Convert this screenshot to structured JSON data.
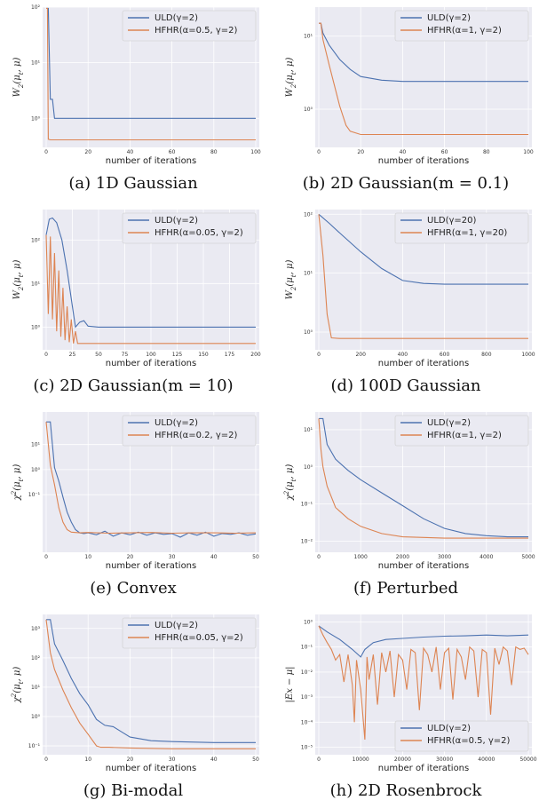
{
  "chart_data": [
    {
      "type": "line",
      "caption": "(a) 1D Gaussian",
      "xlabel": "number of iterations",
      "ylabel": "W_2(μ_t, μ)",
      "xlim": [
        0,
        100
      ],
      "ylim": [
        0.3,
        100
      ],
      "yscale": "log",
      "xticks": [
        0,
        20,
        40,
        60,
        80,
        100
      ],
      "ytick_labels": [
        "10²",
        "10¹",
        "10⁰"
      ],
      "ytick_values": [
        100,
        10,
        1
      ],
      "legend_position": "top-right",
      "series": [
        {
          "name": "ULD(γ=2)",
          "color": "#4c72b0",
          "x": [
            0,
            1,
            2,
            3,
            4,
            10,
            50,
            100
          ],
          "y": [
            95,
            95,
            2.2,
            2.2,
            1.0,
            1.0,
            1.0,
            1.0
          ]
        },
        {
          "name": "HFHR(α=0.5, γ=2)",
          "color": "#dd8452",
          "x": [
            0,
            0.6,
            1,
            2,
            3,
            10,
            50,
            100
          ],
          "y": [
            95,
            95,
            0.42,
            0.41,
            0.41,
            0.41,
            0.41,
            0.41
          ]
        }
      ]
    },
    {
      "type": "line",
      "caption": "(b) 2D Gaussian(m = 0.1)",
      "xlabel": "number of iterations",
      "ylabel": "W_2(μ_t, μ)",
      "xlim": [
        0,
        100
      ],
      "ylim": [
        0.3,
        25
      ],
      "yscale": "log",
      "xticks": [
        0,
        20,
        40,
        60,
        80,
        100
      ],
      "ytick_labels": [
        "10¹",
        "10⁰"
      ],
      "ytick_values": [
        10,
        1
      ],
      "legend_position": "top-right",
      "series": [
        {
          "name": "ULD(γ=2)",
          "color": "#4c72b0",
          "x": [
            0,
            1,
            2,
            5,
            10,
            15,
            20,
            30,
            40,
            60,
            80,
            100
          ],
          "y": [
            15,
            15,
            11,
            7.5,
            4.8,
            3.5,
            2.8,
            2.5,
            2.4,
            2.4,
            2.4,
            2.4
          ]
        },
        {
          "name": "HFHR(α=1, γ=2)",
          "color": "#dd8452",
          "x": [
            0,
            1,
            2,
            5,
            10,
            13,
            15,
            20,
            30,
            60,
            100
          ],
          "y": [
            15,
            15,
            9,
            4,
            1.1,
            0.6,
            0.5,
            0.45,
            0.45,
            0.45,
            0.45
          ]
        }
      ]
    },
    {
      "type": "line",
      "caption": "(c) 2D Gaussian(m = 10)",
      "xlabel": "number of iterations",
      "ylabel": "W_2(μ_t, μ)",
      "xlim": [
        0,
        200
      ],
      "ylim": [
        0.3,
        500
      ],
      "yscale": "log",
      "xticks": [
        0,
        25,
        50,
        75,
        100,
        125,
        150,
        175,
        200
      ],
      "ytick_labels": [
        "10²",
        "10¹",
        "10⁰"
      ],
      "ytick_values": [
        100,
        10,
        1
      ],
      "legend_position": "top-right",
      "series": [
        {
          "name": "ULD(γ=2)",
          "color": "#4c72b0",
          "x": [
            0,
            3,
            6,
            10,
            15,
            20,
            25,
            28,
            32,
            36,
            40,
            50,
            100,
            200
          ],
          "y": [
            130,
            300,
            320,
            250,
            100,
            20,
            3,
            1.0,
            1.3,
            1.4,
            1.05,
            1.0,
            1.0,
            1.0
          ]
        },
        {
          "name": "HFHR(α=0.05, γ=2)",
          "color": "#dd8452",
          "x": [
            0,
            2,
            4,
            6,
            8,
            10,
            12,
            14,
            16,
            18,
            20,
            22,
            24,
            26,
            28,
            30,
            40,
            100,
            200
          ],
          "y": [
            130,
            2.0,
            120,
            1.5,
            50,
            0.8,
            20,
            0.6,
            8,
            0.5,
            3,
            0.45,
            1.5,
            0.42,
            0.8,
            0.42,
            0.42,
            0.42,
            0.42
          ]
        }
      ]
    },
    {
      "type": "line",
      "caption": "(d) 100D Gaussian",
      "xlabel": "number of iterations",
      "ylabel": "W_2(μ_t, μ)",
      "xlim": [
        0,
        1000
      ],
      "ylim": [
        0.5,
        120
      ],
      "yscale": "log",
      "xticks": [
        0,
        200,
        400,
        600,
        800,
        1000
      ],
      "ytick_labels": [
        "10²",
        "10¹",
        "10⁰"
      ],
      "ytick_values": [
        100,
        10,
        1
      ],
      "legend_position": "top-right",
      "series": [
        {
          "name": "ULD(γ=20)",
          "color": "#4c72b0",
          "x": [
            0,
            50,
            100,
            200,
            300,
            400,
            500,
            600,
            800,
            1000
          ],
          "y": [
            100,
            70,
            48,
            23,
            12,
            7.5,
            6.7,
            6.5,
            6.5,
            6.5
          ]
        },
        {
          "name": "HFHR(α=1, γ=20)",
          "color": "#dd8452",
          "x": [
            0,
            20,
            40,
            60,
            100,
            500,
            1000
          ],
          "y": [
            100,
            20,
            2,
            0.8,
            0.78,
            0.78,
            0.78
          ]
        }
      ]
    },
    {
      "type": "line",
      "caption": "(e) Convex",
      "xlabel": "number of iterations",
      "ylabel": "χ²(μ_t, μ)",
      "xlim": [
        0,
        50
      ],
      "ylim": [
        0.0005,
        200
      ],
      "yscale": "log",
      "xticks": [
        0,
        10,
        20,
        30,
        40,
        50
      ],
      "ytick_labels": [
        "10¹",
        "10⁰",
        "10⁻¹"
      ],
      "ytick_values": [
        10,
        1,
        0.1
      ],
      "legend_position": "top-right",
      "series": [
        {
          "name": "ULD(γ=2)",
          "color": "#4c72b0",
          "x": [
            0,
            1,
            2,
            3,
            4,
            5,
            6,
            7,
            8,
            9,
            10,
            12,
            14,
            16,
            18,
            20,
            22,
            24,
            26,
            28,
            30,
            32,
            34,
            36,
            38,
            40,
            42,
            44,
            46,
            48,
            50
          ],
          "y": [
            80,
            80,
            1.2,
            0.35,
            0.08,
            0.02,
            0.008,
            0.004,
            0.003,
            0.0028,
            0.003,
            0.0025,
            0.0035,
            0.0022,
            0.003,
            0.0025,
            0.0032,
            0.0024,
            0.003,
            0.0026,
            0.0028,
            0.002,
            0.003,
            0.0024,
            0.0032,
            0.0022,
            0.0028,
            0.0026,
            0.003,
            0.0024,
            0.0027
          ]
        },
        {
          "name": "HFHR(α=0.2, γ=2)",
          "color": "#dd8452",
          "x": [
            0,
            1,
            2,
            3,
            4,
            5,
            6,
            8,
            10,
            15,
            20,
            25,
            30,
            35,
            40,
            45,
            50
          ],
          "y": [
            80,
            1.5,
            0.25,
            0.03,
            0.008,
            0.004,
            0.0032,
            0.003,
            0.0031,
            0.0029,
            0.003,
            0.0031,
            0.0029,
            0.003,
            0.003,
            0.0029,
            0.003
          ]
        }
      ]
    },
    {
      "type": "line",
      "caption": "(f) Perturbed",
      "xlabel": "number of iterations",
      "ylabel": "χ²(μ_t, μ)",
      "xlim": [
        0,
        5000
      ],
      "ylim": [
        0.005,
        30
      ],
      "yscale": "log",
      "xticks": [
        0,
        1000,
        2000,
        3000,
        4000,
        5000
      ],
      "ytick_labels": [
        "10¹",
        "10⁰",
        "10⁻¹",
        "10⁻²"
      ],
      "ytick_values": [
        10,
        1,
        0.1,
        0.01
      ],
      "legend_position": "top-right",
      "series": [
        {
          "name": "ULD(γ=2)",
          "color": "#4c72b0",
          "x": [
            0,
            100,
            200,
            400,
            700,
            1000,
            1500,
            2000,
            2500,
            3000,
            3500,
            4000,
            4500,
            5000
          ],
          "y": [
            20,
            20,
            4,
            1.6,
            0.8,
            0.45,
            0.2,
            0.09,
            0.04,
            0.022,
            0.016,
            0.014,
            0.013,
            0.013
          ]
        },
        {
          "name": "HFHR(α=1, γ=2)",
          "color": "#dd8452",
          "x": [
            0,
            50,
            100,
            200,
            400,
            700,
            1000,
            1500,
            2000,
            3000,
            4000,
            5000
          ],
          "y": [
            20,
            3,
            1.0,
            0.3,
            0.08,
            0.04,
            0.025,
            0.016,
            0.013,
            0.012,
            0.012,
            0.012
          ]
        }
      ]
    },
    {
      "type": "line",
      "caption": "(g) Bi-modal",
      "xlabel": "number of iterations",
      "ylabel": "χ²(μ_t, μ)",
      "xlim": [
        0,
        50
      ],
      "ylim": [
        0.05,
        3000
      ],
      "yscale": "log",
      "xticks": [
        0,
        10,
        20,
        30,
        40,
        50
      ],
      "ytick_labels": [
        "10³",
        "10²",
        "10¹",
        "10⁰",
        "10⁻¹"
      ],
      "ytick_values": [
        1000,
        100,
        10,
        1,
        0.1
      ],
      "legend_position": "top-right",
      "series": [
        {
          "name": "ULD(γ=2)",
          "color": "#4c72b0",
          "x": [
            0,
            1,
            2,
            4,
            6,
            8,
            10,
            12,
            14,
            16,
            18,
            20,
            25,
            30,
            40,
            50
          ],
          "y": [
            2000,
            2000,
            300,
            80,
            20,
            6,
            2.5,
            0.8,
            0.5,
            0.45,
            0.3,
            0.2,
            0.15,
            0.14,
            0.13,
            0.13
          ]
        },
        {
          "name": "HFHR(α=0.05, γ=2)",
          "color": "#dd8452",
          "x": [
            0,
            1,
            2,
            4,
            6,
            8,
            10,
            12,
            13,
            15,
            20,
            30,
            40,
            50
          ],
          "y": [
            2000,
            150,
            40,
            8,
            2,
            0.6,
            0.25,
            0.1,
            0.09,
            0.09,
            0.085,
            0.08,
            0.08,
            0.08
          ]
        }
      ]
    },
    {
      "type": "line",
      "caption": "(h) 2D Rosenbrock",
      "xlabel": "number of iterations",
      "ylabel": "|Ex − μ|",
      "xlim": [
        0,
        50000
      ],
      "ylim": [
        5e-06,
        2
      ],
      "yscale": "log",
      "xticks": [
        0,
        10000,
        20000,
        30000,
        40000,
        50000
      ],
      "ytick_labels": [
        "10⁰",
        "10⁻¹",
        "10⁻²",
        "10⁻³",
        "10⁻⁴",
        "10⁻⁵"
      ],
      "ytick_values": [
        1,
        0.1,
        0.01,
        0.001,
        0.0001,
        1e-05
      ],
      "legend_position": "bottom-right",
      "series": [
        {
          "name": "ULD(γ=2)",
          "color": "#4c72b0",
          "x": [
            0,
            2000,
            5000,
            8000,
            10000,
            11000,
            13000,
            16000,
            20000,
            25000,
            30000,
            35000,
            40000,
            45000,
            50000
          ],
          "y": [
            0.7,
            0.4,
            0.2,
            0.08,
            0.04,
            0.08,
            0.15,
            0.2,
            0.22,
            0.25,
            0.27,
            0.28,
            0.3,
            0.28,
            0.3
          ]
        },
        {
          "name": "HFHR(α=0.5, γ=2)",
          "color": "#dd8452",
          "x": [
            0,
            1000,
            2000,
            3000,
            4000,
            5000,
            6000,
            7000,
            8000,
            8500,
            9000,
            10000,
            11000,
            11500,
            12000,
            13000,
            14000,
            15000,
            16000,
            17000,
            18000,
            19000,
            20000,
            21000,
            22000,
            23000,
            24000,
            25000,
            26000,
            27000,
            28000,
            29000,
            30000,
            31000,
            32000,
            33000,
            34000,
            35000,
            36000,
            37000,
            38000,
            39000,
            40000,
            41000,
            42000,
            43000,
            44000,
            45000,
            46000,
            47000,
            48000,
            49000,
            50000
          ],
          "y": [
            0.7,
            0.3,
            0.15,
            0.08,
            0.03,
            0.05,
            0.004,
            0.05,
            0.003,
            0.0001,
            0.03,
            0.002,
            2e-05,
            0.04,
            0.005,
            0.05,
            0.0005,
            0.06,
            0.01,
            0.07,
            0.001,
            0.05,
            0.03,
            0.002,
            0.08,
            0.06,
            0.0003,
            0.09,
            0.05,
            0.01,
            0.1,
            0.002,
            0.06,
            0.09,
            0.0008,
            0.08,
            0.04,
            0.005,
            0.1,
            0.07,
            0.001,
            0.08,
            0.06,
            0.0002,
            0.09,
            0.02,
            0.1,
            0.07,
            0.003,
            0.1,
            0.08,
            0.09,
            0.05
          ]
        }
      ]
    }
  ]
}
